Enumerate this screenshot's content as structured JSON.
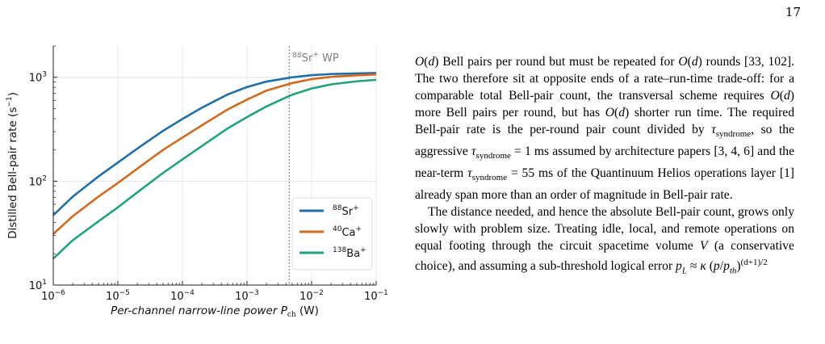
{
  "page_number": "17",
  "chart_data": {
    "type": "line",
    "xlabel": "Per-channel narrow-line power P",
    "xlabel_sub": "ch",
    "xlabel_unit": " (W)",
    "ylabel": "Distilled Bell-pair rate (s",
    "ylabel_sup": "−1",
    "ylabel_end": ")",
    "x_scale": "log",
    "y_scale": "log",
    "xlim": [
      1e-06,
      0.1
    ],
    "ylim": [
      10,
      2000
    ],
    "grid": true,
    "legend_position": "lower-right",
    "x_ticks": [
      {
        "value": 1e-06,
        "base": "10",
        "exp": "−6"
      },
      {
        "value": 1e-05,
        "base": "10",
        "exp": "−5"
      },
      {
        "value": 0.0001,
        "base": "10",
        "exp": "−4"
      },
      {
        "value": 0.001,
        "base": "10",
        "exp": "−3"
      },
      {
        "value": 0.01,
        "base": "10",
        "exp": "−2"
      },
      {
        "value": 0.1,
        "base": "10",
        "exp": "−1"
      }
    ],
    "y_ticks": [
      {
        "value": 10,
        "base": "10",
        "exp": "1"
      },
      {
        "value": 100,
        "base": "10",
        "exp": "2"
      },
      {
        "value": 1000,
        "base": "10",
        "exp": "3"
      }
    ],
    "vline": {
      "x": 0.0045,
      "label_sup": "88",
      "label": "Sr",
      "label_ion": "+",
      "label_tail": " WP",
      "color": "#7f7f7f"
    },
    "series": [
      {
        "name": "Sr",
        "mass": "88",
        "ion": "+",
        "color": "#1f6fa8",
        "x": [
          1e-06,
          2e-06,
          5e-06,
          1e-05,
          2e-05,
          5e-05,
          0.0001,
          0.0002,
          0.0005,
          0.001,
          0.002,
          0.005,
          0.01,
          0.02,
          0.05,
          0.1
        ],
        "y": [
          47,
          71,
          111,
          151,
          206,
          305,
          397,
          510,
          683,
          806,
          910,
          1000,
          1048,
          1075,
          1090,
          1100
        ]
      },
      {
        "name": "Ca",
        "mass": "40",
        "ion": "+",
        "color": "#d2691e",
        "x": [
          1e-06,
          2e-06,
          5e-06,
          1e-05,
          2e-05,
          5e-05,
          0.0001,
          0.0002,
          0.0005,
          0.001,
          0.002,
          0.005,
          0.01,
          0.02,
          0.05,
          0.1
        ],
        "y": [
          31,
          46,
          71,
          96,
          132,
          200,
          263,
          345,
          490,
          610,
          745,
          880,
          960,
          1010,
          1045,
          1065
        ]
      },
      {
        "name": "Ba",
        "mass": "138",
        "ion": "+",
        "color": "#1fa37d",
        "x": [
          1e-06,
          2e-06,
          5e-06,
          1e-05,
          2e-05,
          5e-05,
          0.0001,
          0.0002,
          0.0005,
          0.001,
          0.002,
          0.005,
          0.01,
          0.02,
          0.05,
          0.1
        ],
        "y": [
          18,
          27,
          41,
          56,
          78,
          120,
          162,
          218,
          322,
          414,
          525,
          680,
          780,
          855,
          915,
          945
        ]
      }
    ]
  },
  "text": {
    "para1": [
      {
        "t": "O",
        "i": true
      },
      {
        "t": "("
      },
      {
        "t": "d",
        "i": true
      },
      {
        "t": ") Bell pairs per round but must be repeated for "
      },
      {
        "t": "O",
        "i": true
      },
      {
        "t": "("
      },
      {
        "t": "d",
        "i": true
      },
      {
        "t": ") rounds [33, 102]. The two therefore sit at opposite ends of a rate–run-time trade-off: for a comparable total Bell-pair count, the transversal scheme requires "
      },
      {
        "t": "O",
        "i": true
      },
      {
        "t": "("
      },
      {
        "t": "d",
        "i": true
      },
      {
        "t": ") more Bell pairs per round, but has "
      },
      {
        "t": "O",
        "i": true
      },
      {
        "t": "("
      },
      {
        "t": "d",
        "i": true
      },
      {
        "t": ") shorter run time. The required Bell-pair rate is the per-round pair count divided by "
      },
      {
        "t": "τ",
        "i": true
      },
      {
        "t": "syndrome",
        "sub": true
      },
      {
        "t": ", so the aggressive "
      },
      {
        "t": "τ",
        "i": true
      },
      {
        "t": "syndrome",
        "sub": true
      },
      {
        "t": " = 1 ms assumed by architecture papers [3, 4, 6] and the near-term "
      },
      {
        "t": "τ",
        "i": true
      },
      {
        "t": "syndrome",
        "sub": true
      },
      {
        "t": " = 55 ms of the Quantinuum Helios operations layer [1] already span more than an order of magnitude in Bell-pair rate."
      }
    ],
    "para2": [
      {
        "t": "The distance needed, and hence the absolute Bell-pair count, grows only slowly with problem size. Treating idle, local, and remote operations on equal footing through the circuit spacetime volume "
      },
      {
        "t": "V",
        "i": true
      },
      {
        "t": " (a conservative choice), and assuming a sub-threshold logical error "
      },
      {
        "t": "p",
        "i": true
      },
      {
        "t": "L",
        "sub": true,
        "i": true
      },
      {
        "t": " ≈ "
      },
      {
        "t": "κ",
        "i": true
      },
      {
        "t": " ("
      },
      {
        "t": "p",
        "i": true
      },
      {
        "t": "/"
      },
      {
        "t": "p",
        "i": true
      },
      {
        "t": "th",
        "sub": true,
        "i": true
      },
      {
        "t": ")"
      },
      {
        "t": "(d+1)/2",
        "sup": true
      }
    ]
  }
}
